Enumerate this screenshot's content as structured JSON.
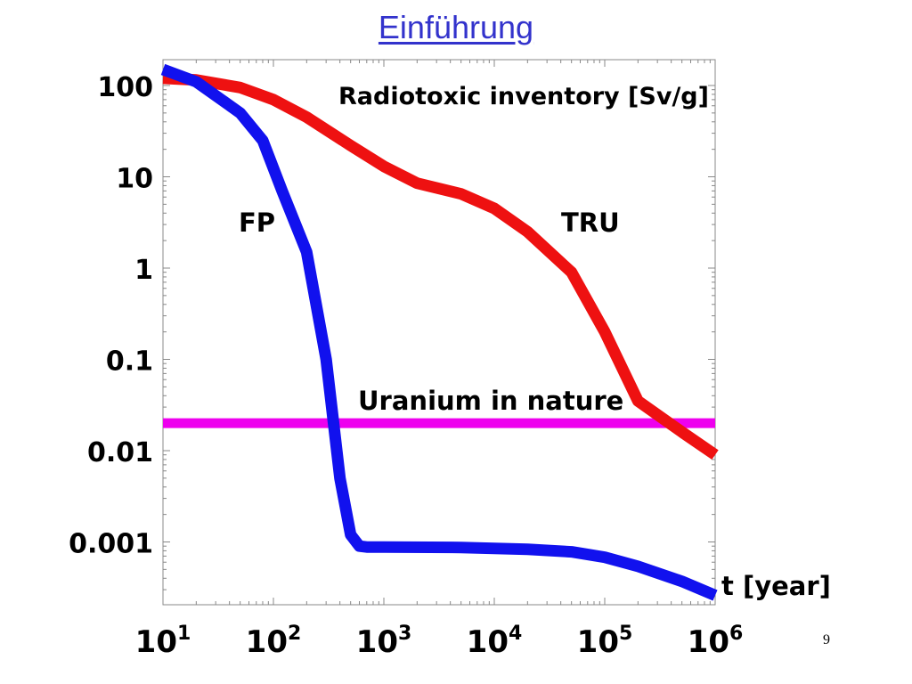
{
  "slide": {
    "title": "Einführung",
    "page_number": "9"
  },
  "chart_data": {
    "type": "line",
    "title": "Radiotoxic inventory [Sv/g]",
    "xlabel": "t [year]",
    "ylabel": "",
    "x_scale": "log",
    "y_scale": "log",
    "xlim": [
      10,
      1000000
    ],
    "ylim": [
      0.0002,
      200
    ],
    "grid": false,
    "x_ticks": [
      {
        "value": 10,
        "base": "10",
        "exp": "1"
      },
      {
        "value": 100,
        "base": "10",
        "exp": "2"
      },
      {
        "value": 1000,
        "base": "10",
        "exp": "3"
      },
      {
        "value": 10000,
        "base": "10",
        "exp": "4"
      },
      {
        "value": 100000,
        "base": "10",
        "exp": "5"
      },
      {
        "value": 1000000,
        "base": "10",
        "exp": "6"
      }
    ],
    "y_ticks": [
      {
        "value": 100,
        "label": "100"
      },
      {
        "value": 10,
        "label": "10"
      },
      {
        "value": 1,
        "label": "1"
      },
      {
        "value": 0.1,
        "label": "0.1"
      },
      {
        "value": 0.01,
        "label": "0.01"
      },
      {
        "value": 0.001,
        "label": "0.001"
      }
    ],
    "series": [
      {
        "name": "TRU",
        "color": "#ee1111",
        "x": [
          10,
          20,
          50,
          100,
          200,
          500,
          1000,
          2000,
          5000,
          10000,
          20000,
          50000,
          100000,
          200000,
          500000,
          1000000
        ],
        "y": [
          120,
          115,
          95,
          70,
          45,
          22,
          13,
          8.5,
          6.5,
          4.5,
          2.5,
          0.9,
          0.2,
          0.035,
          0.016,
          0.009
        ]
      },
      {
        "name": "FP",
        "color": "#1111ee",
        "x": [
          10,
          20,
          50,
          80,
          120,
          200,
          300,
          400,
          500,
          600,
          700,
          1000,
          5000,
          20000,
          50000,
          100000,
          200000,
          500000,
          1000000
        ],
        "y": [
          150,
          110,
          50,
          25,
          7,
          1.5,
          0.1,
          0.005,
          0.0012,
          0.0009,
          0.00088,
          0.00088,
          0.00087,
          0.00083,
          0.00078,
          0.00068,
          0.00054,
          0.00037,
          0.00026
        ]
      },
      {
        "name": "Uranium in nature",
        "color": "#ee00ee",
        "x": [
          10,
          1000000
        ],
        "y": [
          0.02,
          0.02
        ]
      }
    ]
  }
}
